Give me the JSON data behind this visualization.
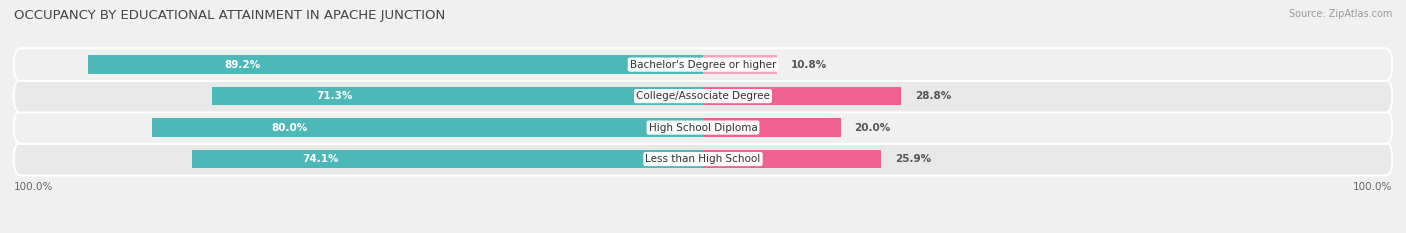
{
  "title": "OCCUPANCY BY EDUCATIONAL ATTAINMENT IN APACHE JUNCTION",
  "source": "Source: ZipAtlas.com",
  "categories": [
    "Less than High School",
    "High School Diploma",
    "College/Associate Degree",
    "Bachelor's Degree or higher"
  ],
  "owner_pct": [
    74.1,
    80.0,
    71.3,
    89.2
  ],
  "renter_pct": [
    25.9,
    20.0,
    28.8,
    10.8
  ],
  "owner_color": "#4db8b8",
  "renter_colors": [
    "#f06090",
    "#f06090",
    "#f06090",
    "#f4a8c0"
  ],
  "bg_color": "#f0f0f0",
  "row_bg_colors": [
    "#e8e8e8",
    "#f0f0f0",
    "#e8e8e8",
    "#f0f0f0"
  ],
  "title_fontsize": 9.5,
  "label_fontsize": 7.5,
  "value_fontsize": 7.5,
  "tick_fontsize": 7.5,
  "source_fontsize": 7,
  "bar_height": 0.58,
  "left_axis_label": "100.0%",
  "right_axis_label": "100.0%",
  "total_width": 100
}
